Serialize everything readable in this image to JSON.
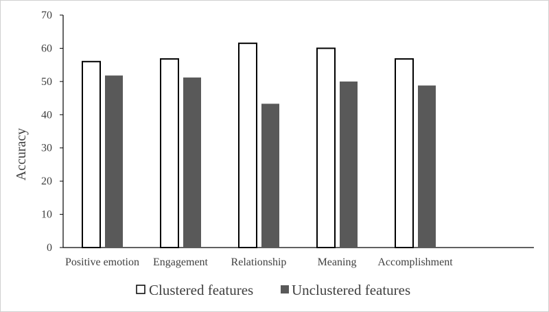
{
  "chart_data": {
    "type": "bar",
    "title": "",
    "xlabel": "",
    "ylabel": "Accuracy",
    "ylim": [
      0,
      70
    ],
    "yticks": [
      "0",
      "10",
      "20",
      "30",
      "40",
      "50",
      "60",
      "70"
    ],
    "categories": [
      "Positive emotion",
      "Engagement",
      "Relationship",
      "Meaning",
      "Accomplishment"
    ],
    "series": [
      {
        "name": "Clustered features",
        "values": [
          56,
          56.8,
          61.5,
          60,
          56.8
        ],
        "color": "#ffffff",
        "stroke": "#000000"
      },
      {
        "name": "Unclustered features",
        "values": [
          51.8,
          51.2,
          43.3,
          50,
          48.8
        ],
        "color": "#595959",
        "stroke": "#595959"
      }
    ],
    "legend": "bottom",
    "grid": false
  }
}
